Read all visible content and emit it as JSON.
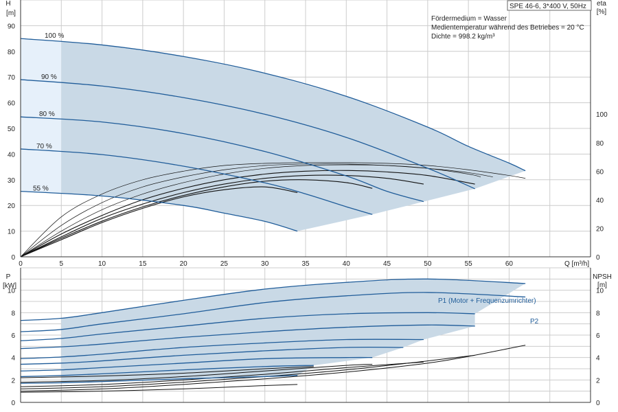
{
  "info_box": {
    "model": "SPE 46-6, 3*400 V, 50Hz",
    "medium": "Fördermedium = Wasser",
    "temperature": "Medientemperatur während des Betriebes = 20 °C",
    "density": "Dichte = 998.2 kg/m³"
  },
  "axes": {
    "top_left_title": "H",
    "top_left_unit": "[m]",
    "top_right_title": "eta",
    "top_right_unit": "[%]",
    "x_label": "Q [m³/h]",
    "bottom_left_title": "P",
    "bottom_left_unit": "[kW]",
    "bottom_right_title": "NPSH",
    "bottom_right_unit": "[m]"
  },
  "colors": {
    "curve_blue": "#1f5c99",
    "area_fill": "#c9d9e6",
    "area_fill_light": "#e6f0fa",
    "grid": "#cccccc",
    "eff_curve": "#111111"
  },
  "chart_data": [
    {
      "type": "line",
      "name": "head",
      "x_range": [
        0,
        70
      ],
      "x_ticks": [
        0,
        5,
        10,
        15,
        20,
        25,
        30,
        35,
        40,
        45,
        50,
        55,
        60
      ],
      "y_range": [
        0,
        100
      ],
      "y_ticks": [
        0,
        10,
        20,
        30,
        40,
        50,
        60,
        70,
        80,
        90
      ],
      "y_right_range": [
        0,
        180
      ],
      "y_right_ticks": [
        0,
        20,
        40,
        60,
        80,
        100
      ],
      "speed_labels": [
        "100 %",
        "90 %",
        "80 %",
        "70 %",
        "55 %"
      ],
      "series": [
        {
          "name": "100 %",
          "x": [
            0,
            10,
            20,
            30,
            40,
            50,
            55,
            60,
            62
          ],
          "y": [
            85,
            82.5,
            78,
            71.5,
            62.5,
            50.5,
            43,
            36.5,
            33.5
          ]
        },
        {
          "name": "90 %",
          "x": [
            0,
            10,
            20,
            30,
            40,
            50,
            55.8
          ],
          "y": [
            69,
            66.5,
            62,
            55.5,
            46.5,
            34.5,
            26.5
          ]
        },
        {
          "name": "80 %",
          "x": [
            0,
            10,
            20,
            30,
            40,
            45,
            49.5
          ],
          "y": [
            54.5,
            52.5,
            48,
            41,
            31.5,
            25.5,
            21.5
          ]
        },
        {
          "name": "70 %",
          "x": [
            0,
            10,
            20,
            30,
            35,
            40,
            43.2
          ],
          "y": [
            42,
            39.8,
            35.3,
            28.8,
            24.5,
            19.5,
            16.5
          ]
        },
        {
          "name": "55 %",
          "x": [
            0,
            10,
            20,
            25,
            30,
            34
          ],
          "y": [
            25.5,
            23.7,
            20,
            17,
            13.8,
            10
          ]
        }
      ],
      "efficiency": [
        {
          "x": [
            0,
            5,
            10,
            15,
            20,
            25,
            30,
            35,
            40,
            45,
            50,
            55,
            60,
            62
          ],
          "y": [
            0,
            28,
            44,
            54,
            60,
            64,
            65.5,
            66,
            66,
            65.5,
            64,
            61,
            57,
            55
          ]
        },
        {
          "x": [
            0,
            5,
            10,
            15,
            20,
            25,
            30,
            35,
            40,
            45,
            50,
            55,
            58
          ],
          "y": [
            0,
            22,
            38,
            49,
            56,
            61,
            64,
            65,
            65,
            64,
            62,
            59,
            56
          ]
        },
        {
          "x": [
            0,
            5,
            10,
            15,
            20,
            25,
            30,
            35,
            40,
            45,
            50,
            55,
            56.5
          ],
          "y": [
            0,
            18,
            33,
            44,
            52,
            58,
            62,
            64,
            64.5,
            64,
            62,
            58,
            56
          ]
        },
        {
          "x": [
            0,
            5,
            10,
            15,
            20,
            25,
            30,
            35,
            40,
            45,
            50,
            55.8
          ],
          "y": [
            0,
            16,
            29,
            40,
            48,
            54,
            58,
            60,
            60.5,
            59.5,
            57,
            51
          ]
        },
        {
          "x": [
            0,
            5,
            10,
            15,
            20,
            25,
            30,
            35,
            40,
            45,
            49.5
          ],
          "y": [
            0,
            14,
            27,
            37,
            45,
            51,
            55,
            57,
            57,
            55,
            51
          ]
        },
        {
          "x": [
            0,
            5,
            10,
            15,
            20,
            25,
            30,
            35,
            40,
            43.2
          ],
          "y": [
            0,
            13,
            25,
            35,
            43,
            49,
            53,
            54,
            52,
            48
          ]
        },
        {
          "x": [
            0,
            5,
            10,
            15,
            20,
            25,
            30,
            34
          ],
          "y": [
            0,
            12,
            24,
            34,
            42,
            47,
            49,
            45
          ]
        }
      ]
    },
    {
      "type": "line",
      "name": "power",
      "x_range": [
        0,
        70
      ],
      "x_ticks": [
        0,
        5,
        10,
        15,
        20,
        25,
        30,
        35,
        40,
        45,
        50,
        55,
        60
      ],
      "y_range": [
        0,
        12
      ],
      "y_ticks": [
        0,
        2,
        4,
        6,
        8,
        10
      ],
      "y_right_range": [
        0,
        12
      ],
      "y_right_ticks": [
        0,
        2,
        4,
        6,
        8,
        10
      ],
      "annotations": [
        "P1 (Motor + Frequenzumrichter)",
        "P2"
      ],
      "series": [
        {
          "name": "P1 (Motor + Frequenzumrichter)",
          "x": [
            0,
            5,
            10,
            20,
            30,
            40,
            50,
            62
          ],
          "y": [
            7.3,
            7.5,
            8,
            9.1,
            10.1,
            10.7,
            11,
            10.6
          ]
        },
        {
          "name": "P2",
          "x": [
            0,
            5,
            10,
            20,
            30,
            40,
            50,
            62
          ],
          "y": [
            6.3,
            6.5,
            7,
            7.9,
            8.9,
            9.5,
            9.8,
            9.4
          ]
        },
        {
          "name": "",
          "x": [
            0,
            5,
            10,
            20,
            30,
            40,
            50,
            55.8
          ],
          "y": [
            5.5,
            5.7,
            6.1,
            6.8,
            7.5,
            7.9,
            8,
            7.9
          ]
        },
        {
          "name": "",
          "x": [
            0,
            5,
            10,
            20,
            30,
            40,
            50,
            55.8
          ],
          "y": [
            4.8,
            4.95,
            5.2,
            5.8,
            6.3,
            6.7,
            6.9,
            6.8
          ]
        },
        {
          "name": "",
          "x": [
            0,
            5,
            10,
            20,
            30,
            40,
            49.5
          ],
          "y": [
            3.9,
            4.05,
            4.3,
            4.9,
            5.3,
            5.6,
            5.6
          ]
        },
        {
          "name": "",
          "x": [
            0,
            5,
            10,
            20,
            30,
            40,
            47
          ],
          "y": [
            3.4,
            3.5,
            3.7,
            4.2,
            4.6,
            4.9,
            4.9
          ]
        },
        {
          "name": "",
          "x": [
            0,
            5,
            10,
            20,
            30,
            40,
            43.2
          ],
          "y": [
            2.8,
            2.9,
            3.1,
            3.5,
            3.9,
            4,
            4
          ]
        },
        {
          "name": "",
          "x": [
            0,
            5,
            10,
            20,
            30,
            36
          ],
          "y": [
            2.3,
            2.4,
            2.55,
            2.9,
            3.2,
            3.3
          ]
        },
        {
          "name": "",
          "x": [
            0,
            5,
            10,
            20,
            30,
            34
          ],
          "y": [
            1.7,
            1.75,
            1.85,
            2.1,
            2.3,
            2.4
          ]
        }
      ],
      "npsh": [
        {
          "x": [
            0,
            10,
            20,
            30,
            40,
            50,
            55,
            62
          ],
          "y": [
            1,
            1.2,
            1.6,
            2.1,
            2.7,
            3.5,
            4.1,
            5.1
          ]
        },
        {
          "x": [
            0,
            10,
            20,
            30,
            40,
            50,
            55.8
          ],
          "y": [
            1.2,
            1.4,
            1.8,
            2.3,
            2.9,
            3.7,
            4.2
          ]
        },
        {
          "x": [
            0,
            10,
            20,
            30,
            40,
            49.5
          ],
          "y": [
            1.4,
            1.6,
            2,
            2.5,
            3.1,
            3.6
          ]
        },
        {
          "x": [
            0,
            10,
            20,
            30,
            40,
            43.2
          ],
          "y": [
            1.8,
            1.95,
            2.3,
            2.8,
            3.3,
            3.4
          ]
        },
        {
          "x": [
            0,
            10,
            20,
            30,
            36
          ],
          "y": [
            2.2,
            2.35,
            2.6,
            3,
            3.2
          ]
        },
        {
          "x": [
            0,
            10,
            20,
            30,
            34
          ],
          "y": [
            0.9,
            1,
            1.2,
            1.5,
            1.6
          ]
        }
      ]
    }
  ]
}
